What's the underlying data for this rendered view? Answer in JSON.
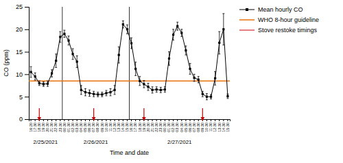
{
  "chart_data": {
    "type": "line",
    "xlabel": "Time and date",
    "ylabel": "CO (ppm)",
    "categories": [
      "16:20",
      "17:30",
      "18:30",
      "19:30",
      "20:30",
      "21:30",
      "22:30",
      "23:30",
      "00:30",
      "01:30",
      "02:30",
      "03:30",
      "04:30",
      "05:30",
      "06:30",
      "07:30",
      "08:30",
      "09:30",
      "10:30",
      "11:30",
      "12:30",
      "13:30",
      "14:30",
      "15:30",
      "16:30",
      "17:30",
      "18:30",
      "19:30",
      "20:30",
      "21:30",
      "22:30",
      "23:30",
      "00:30",
      "01:30",
      "02:30",
      "03:30",
      "04:30",
      "05:30",
      "06:30",
      "07:30",
      "08:30",
      "09:30",
      "10:30",
      "11:30",
      "12:30",
      "13:30",
      "14:30",
      "15:30"
    ],
    "series": [
      {
        "name": "Mean hourly CO",
        "color": "#000000",
        "marker": "square",
        "values": [
          10.5,
          9.5,
          8.0,
          7.8,
          7.9,
          10.2,
          13.0,
          18.3,
          19.0,
          17.5,
          14.5,
          12.8,
          6.5,
          6.0,
          5.8,
          5.6,
          5.5,
          5.5,
          5.8,
          6.0,
          6.5,
          14.3,
          21.1,
          20.0,
          16.9,
          11.2,
          8.5,
          7.8,
          7.2,
          6.5,
          6.6,
          6.5,
          6.6,
          13.5,
          18.8,
          20.7,
          19.2,
          15.3,
          11.2,
          9.2,
          8.8,
          5.6,
          5.0,
          5.0,
          9.1,
          17.0,
          20.0,
          5.1
        ],
        "errors": [
          1.2,
          0.8,
          0.5,
          0.5,
          0.6,
          0.8,
          1.5,
          1.2,
          0.8,
          1.0,
          1.2,
          1.3,
          1.0,
          0.8,
          0.7,
          0.6,
          0.5,
          0.5,
          0.6,
          0.8,
          1.0,
          1.8,
          0.8,
          1.0,
          1.2,
          1.5,
          1.0,
          0.8,
          0.8,
          0.7,
          0.6,
          0.6,
          0.6,
          1.5,
          1.2,
          0.9,
          0.8,
          1.0,
          1.2,
          0.8,
          0.7,
          0.6,
          0.7,
          0.5,
          1.5,
          2.5,
          3.5,
          0.5
        ]
      }
    ],
    "hlines": [
      {
        "name": "WHO 8-hour guideline",
        "value": 8.5,
        "color": "#E8720C"
      }
    ],
    "restokes": {
      "name": "Stove restoke timings",
      "color": "#CC0000",
      "positions": [
        2,
        15,
        27,
        41
      ]
    },
    "date_groups": [
      {
        "label": "2/25/2021",
        "start": 0,
        "count": 8
      },
      {
        "label": "2/26/2021",
        "start": 8,
        "count": 16
      },
      {
        "label": "2/27/2021",
        "start": 24,
        "count": 24
      }
    ],
    "ylim": [
      0,
      25
    ],
    "yticks": [
      0,
      5,
      10,
      15,
      20,
      25
    ],
    "grid": false
  }
}
